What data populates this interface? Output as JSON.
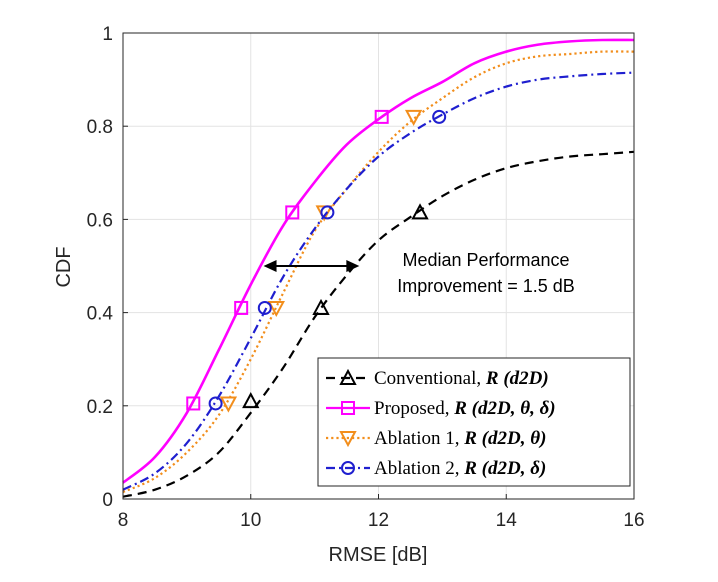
{
  "chart_data": {
    "type": "line",
    "title": "",
    "xlabel": "RMSE [dB]",
    "ylabel": "CDF",
    "xlim": [
      8,
      16
    ],
    "ylim": [
      0,
      1
    ],
    "xticks": [
      8,
      10,
      12,
      14,
      16
    ],
    "yticks": [
      0,
      0.2,
      0.4,
      0.6,
      0.8,
      1
    ],
    "xtick_labels": [
      "8",
      "10",
      "12",
      "14",
      "16"
    ],
    "ytick_labels": [
      "0",
      "0.2",
      "0.4",
      "0.6",
      "0.8",
      "1"
    ],
    "grid": true,
    "legend_position": "bottom-right",
    "series": [
      {
        "name": "Conventional",
        "legend_label": "Conventional, ",
        "legend_math": "R (d2D)",
        "color": "#000000",
        "line_style": "dashed",
        "marker": "triangle",
        "x": [
          8.0,
          8.5,
          9.0,
          9.5,
          10.0,
          10.5,
          11.0,
          11.5,
          12.0,
          12.5,
          13.0,
          13.5,
          14.0,
          14.5,
          15.0,
          15.5,
          16.0
        ],
        "y": [
          0.005,
          0.02,
          0.05,
          0.1,
          0.185,
          0.28,
          0.39,
          0.48,
          0.555,
          0.605,
          0.65,
          0.685,
          0.71,
          0.725,
          0.735,
          0.74,
          0.745
        ],
        "marker_x": [
          10.0,
          11.1,
          12.65
        ],
        "marker_y": [
          0.21,
          0.41,
          0.615
        ]
      },
      {
        "name": "Proposed",
        "legend_label": "Proposed, ",
        "legend_math": "R (d2D, θ, δ)",
        "color": "#ff00ff",
        "line_style": "solid",
        "marker": "square",
        "x": [
          8.0,
          8.5,
          9.0,
          9.5,
          10.0,
          10.5,
          11.0,
          11.5,
          12.0,
          12.5,
          13.0,
          13.5,
          14.0,
          14.5,
          15.0,
          15.5,
          16.0
        ],
        "y": [
          0.035,
          0.09,
          0.185,
          0.32,
          0.46,
          0.585,
          0.68,
          0.76,
          0.815,
          0.86,
          0.895,
          0.935,
          0.96,
          0.975,
          0.982,
          0.985,
          0.985
        ],
        "marker_x": [
          9.1,
          9.85,
          10.65,
          12.05
        ],
        "marker_y": [
          0.205,
          0.41,
          0.615,
          0.82
        ]
      },
      {
        "name": "Ablation 1",
        "legend_label": "Ablation 1, ",
        "legend_math": "R (d2D, θ)",
        "color": "#f28e1c",
        "line_style": "dotted",
        "marker": "inverted-triangle",
        "x": [
          8.0,
          8.5,
          9.0,
          9.5,
          10.0,
          10.5,
          11.0,
          11.5,
          12.0,
          12.5,
          13.0,
          13.5,
          14.0,
          14.5,
          15.0,
          15.5,
          16.0
        ],
        "y": [
          0.015,
          0.045,
          0.1,
          0.18,
          0.3,
          0.44,
          0.575,
          0.665,
          0.745,
          0.81,
          0.86,
          0.905,
          0.935,
          0.95,
          0.955,
          0.96,
          0.96
        ],
        "marker_x": [
          9.65,
          10.4,
          11.15,
          12.55
        ],
        "marker_y": [
          0.205,
          0.41,
          0.615,
          0.82
        ]
      },
      {
        "name": "Ablation 2",
        "legend_label": "Ablation 2, ",
        "legend_math": "R (d2D, δ)",
        "color": "#1f1fcf",
        "line_style": "dashdot",
        "marker": "circle",
        "x": [
          8.0,
          8.5,
          9.0,
          9.5,
          10.0,
          10.5,
          11.0,
          11.5,
          12.0,
          12.5,
          13.0,
          13.5,
          14.0,
          14.5,
          15.0,
          15.5,
          16.0
        ],
        "y": [
          0.02,
          0.055,
          0.12,
          0.22,
          0.345,
          0.475,
          0.58,
          0.665,
          0.735,
          0.785,
          0.825,
          0.86,
          0.885,
          0.9,
          0.907,
          0.912,
          0.915
        ],
        "marker_x": [
          9.45,
          10.22,
          11.2,
          12.95
        ],
        "marker_y": [
          0.205,
          0.41,
          0.615,
          0.82
        ]
      }
    ],
    "annotation": {
      "line1": "Median Performance",
      "line2": "Improvement = 1.5 dB",
      "arrow_from_x": 10.2,
      "arrow_to_x": 11.7,
      "arrow_y": 0.5
    }
  }
}
